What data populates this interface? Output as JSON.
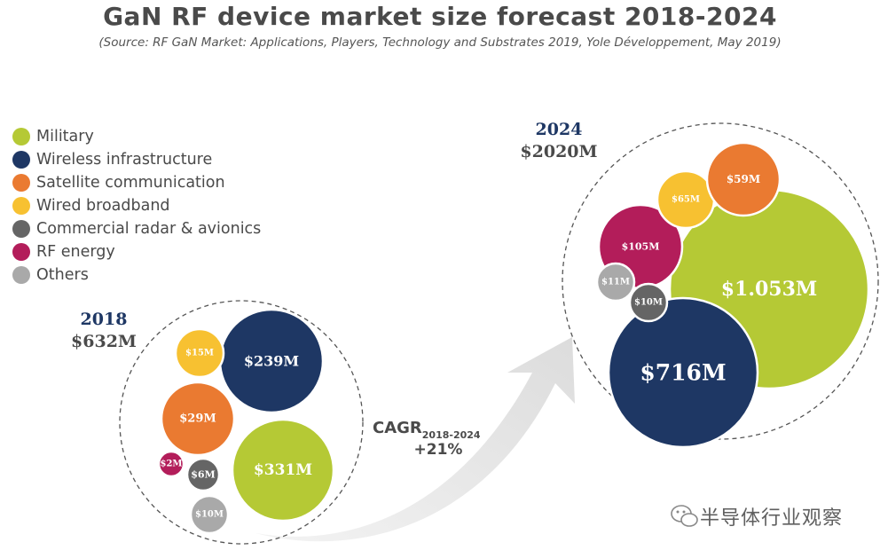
{
  "chart_data": {
    "type": "bubble",
    "title": "GaN RF device market size forecast 2018-2024",
    "subtitle": "(Source: RF GaN Market: Applications, Players, Technology and Substrates 2019, Yole Développement, May 2019)",
    "legend": [
      {
        "name": "Military",
        "color": "#b5c935"
      },
      {
        "name": "Wireless infrastructure",
        "color": "#1e3764"
      },
      {
        "name": "Satellite communication",
        "color": "#ea7a31"
      },
      {
        "name": "Wired broadband",
        "color": "#f7c131"
      },
      {
        "name": "Commercial radar & avionics",
        "color": "#656565"
      },
      {
        "name": "RF energy",
        "color": "#b31d5a"
      },
      {
        "name": "Others",
        "color": "#a9a9a9"
      }
    ],
    "groups": [
      {
        "year": "2018",
        "total": "$632M",
        "bubbles": [
          {
            "segment": "Military",
            "value": 331,
            "label": "$331M"
          },
          {
            "segment": "Wireless infrastructure",
            "value": 239,
            "label": "$239M"
          },
          {
            "segment": "Satellite communication",
            "value": 29,
            "label": "$29M"
          },
          {
            "segment": "Wired broadband",
            "value": 15,
            "label": "$15M"
          },
          {
            "segment": "Others",
            "value": 10,
            "label": "$10M"
          },
          {
            "segment": "Commercial radar & avionics",
            "value": 6,
            "label": "$6M"
          },
          {
            "segment": "RF energy",
            "value": 2,
            "label": "$2M"
          }
        ]
      },
      {
        "year": "2024",
        "total": "$2020M",
        "bubbles": [
          {
            "segment": "Military",
            "value": 1053,
            "label": "$1.053M"
          },
          {
            "segment": "Wireless infrastructure",
            "value": 716,
            "label": "$716M"
          },
          {
            "segment": "RF energy",
            "value": 105,
            "label": "$105M"
          },
          {
            "segment": "Wired broadband",
            "value": 65,
            "label": "$65M"
          },
          {
            "segment": "Satellite communication",
            "value": 59,
            "label": "$59M"
          },
          {
            "segment": "Others",
            "value": 11,
            "label": "$11M"
          },
          {
            "segment": "Commercial radar & avionics",
            "value": 10,
            "label": "$10M"
          }
        ]
      }
    ],
    "cagr": {
      "label": "CAGR",
      "period": "2018-2024",
      "value": "+21%"
    }
  },
  "watermark": {
    "text": "半导体行业观察",
    "icon": "wechat-icon"
  }
}
